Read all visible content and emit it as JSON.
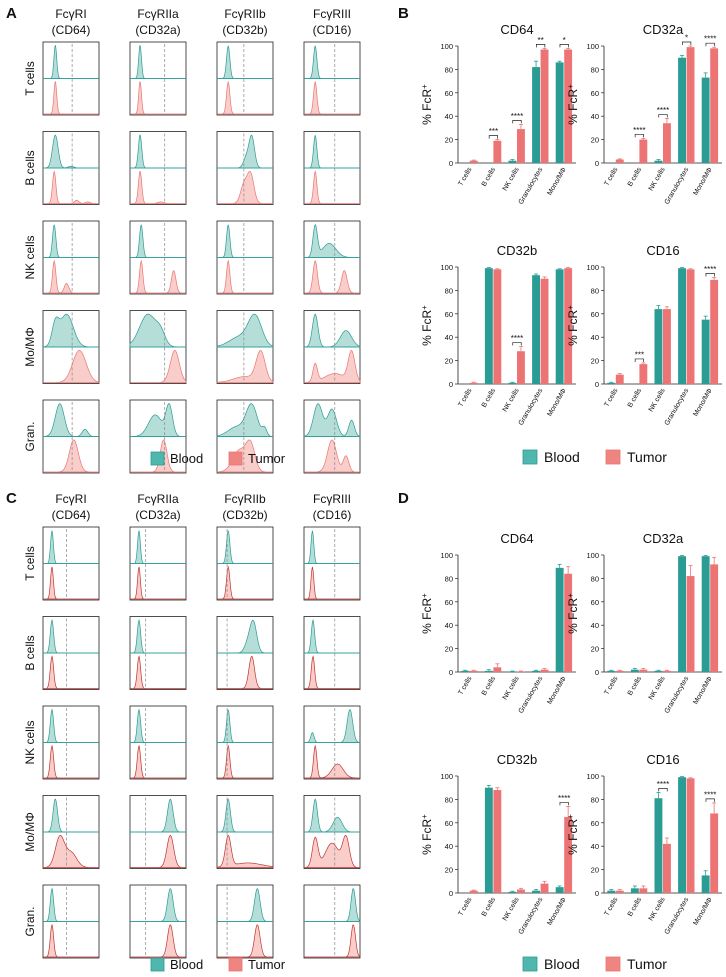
{
  "colors": {
    "blood": "#2a9c94",
    "blood_fill": "#a8d8d2",
    "tumor": "#ec7474",
    "tumor_fill": "#f8c5c1",
    "tumor_line_cd": "#c0332f"
  },
  "panels": [
    "A",
    "B",
    "C",
    "D"
  ],
  "receptors": [
    {
      "line1": "FcγRI",
      "line2": "(CD64)"
    },
    {
      "line1": "FcγRIIa",
      "line2": "(CD32a)"
    },
    {
      "line1": "FcγRIIb",
      "line2": "(CD32b)"
    },
    {
      "line1": "FcγRIII",
      "line2": "(CD16)"
    }
  ],
  "cell_rows": [
    "T cells",
    "B cells",
    "NK cells",
    "Mo/MΦ",
    "Gran."
  ],
  "legend": {
    "blood": "Blood",
    "tumor": "Tumor"
  },
  "ylabel": "% FcR",
  "ylabel_sup": "+",
  "yticks": [
    "0",
    "20",
    "40",
    "60",
    "80",
    "100"
  ],
  "chart_data": [
    {
      "panel": "B",
      "type": "bar",
      "title": "CD64",
      "categories": [
        "T cells",
        "B cells",
        "NK cells",
        "Granulocytes",
        "Mono/MΦ"
      ],
      "series": [
        {
          "name": "Blood",
          "values": [
            0,
            0,
            2,
            82,
            86
          ],
          "err": [
            0,
            0,
            1,
            5,
            1
          ]
        },
        {
          "name": "Tumor",
          "values": [
            2,
            19,
            29,
            97,
            97
          ],
          "err": [
            0.5,
            1,
            4,
            1,
            1
          ]
        }
      ],
      "ylim": [
        0,
        100
      ],
      "sig": [
        {
          "i": 1,
          "label": "***"
        },
        {
          "i": 2,
          "label": "****"
        },
        {
          "i": 3,
          "label": "**"
        },
        {
          "i": 4,
          "label": "*"
        }
      ]
    },
    {
      "panel": "B",
      "type": "bar",
      "title": "CD32a",
      "categories": [
        "T cells",
        "B cells",
        "NK cells",
        "Granulocytes",
        "Mono/MΦ"
      ],
      "series": [
        {
          "name": "Blood",
          "values": [
            0,
            0,
            2,
            90,
            73
          ],
          "err": [
            0,
            0,
            1,
            2,
            4
          ]
        },
        {
          "name": "Tumor",
          "values": [
            3,
            20,
            34,
            99,
            98
          ],
          "err": [
            0.5,
            1,
            4,
            1,
            1
          ]
        }
      ],
      "ylim": [
        0,
        100
      ],
      "sig": [
        {
          "i": 1,
          "label": "****"
        },
        {
          "i": 2,
          "label": "****"
        },
        {
          "i": 3,
          "label": "*"
        },
        {
          "i": 4,
          "label": "****"
        }
      ]
    },
    {
      "panel": "B",
      "type": "bar",
      "title": "CD32b",
      "categories": [
        "T cells",
        "B cells",
        "NK cells",
        "Granulocytes",
        "Mono/MΦ"
      ],
      "series": [
        {
          "name": "Blood",
          "values": [
            0,
            99,
            1,
            93,
            98
          ],
          "err": [
            0,
            0.5,
            0.5,
            1,
            0.5
          ]
        },
        {
          "name": "Tumor",
          "values": [
            1,
            98,
            28,
            90,
            99
          ],
          "err": [
            0.5,
            0.5,
            4,
            1.5,
            0.5
          ]
        }
      ],
      "ylim": [
        0,
        100
      ],
      "sig": [
        {
          "i": 2,
          "label": "****"
        }
      ]
    },
    {
      "panel": "B",
      "type": "bar",
      "title": "CD16",
      "categories": [
        "T cells",
        "B cells",
        "NK cells",
        "Granulocytes",
        "Mono/MΦ"
      ],
      "series": [
        {
          "name": "Blood",
          "values": [
            1,
            0,
            64,
            99,
            55
          ],
          "err": [
            0.5,
            0,
            3,
            0.5,
            3
          ]
        },
        {
          "name": "Tumor",
          "values": [
            8,
            17,
            64,
            98,
            89
          ],
          "err": [
            1,
            1,
            2,
            0.5,
            2
          ]
        }
      ],
      "ylim": [
        0,
        100
      ],
      "sig": [
        {
          "i": 1,
          "label": "***"
        },
        {
          "i": 4,
          "label": "****"
        }
      ]
    },
    {
      "panel": "D",
      "type": "bar",
      "title": "CD64",
      "categories": [
        "T cells",
        "B cells",
        "NK cells",
        "Granulocytes",
        "Mono/MΦ"
      ],
      "series": [
        {
          "name": "Blood",
          "values": [
            1,
            1,
            0.5,
            1,
            89
          ],
          "err": [
            0.5,
            1,
            0.3,
            0.5,
            3
          ]
        },
        {
          "name": "Tumor",
          "values": [
            1,
            4,
            0.5,
            2,
            84
          ],
          "err": [
            0.5,
            3,
            0.3,
            1,
            6
          ]
        }
      ],
      "ylim": [
        0,
        100
      ],
      "sig": []
    },
    {
      "panel": "D",
      "type": "bar",
      "title": "CD32a",
      "categories": [
        "T cells",
        "B cells",
        "NK cells",
        "Granulocytes",
        "Mono/MΦ"
      ],
      "series": [
        {
          "name": "Blood",
          "values": [
            1,
            2,
            1,
            99,
            99
          ],
          "err": [
            0.5,
            1,
            0.5,
            0.5,
            0.5
          ]
        },
        {
          "name": "Tumor",
          "values": [
            1,
            2,
            1,
            82,
            92
          ],
          "err": [
            0.5,
            1,
            0.5,
            9,
            6
          ]
        }
      ],
      "ylim": [
        0,
        100
      ],
      "sig": []
    },
    {
      "panel": "D",
      "type": "bar",
      "title": "CD32b",
      "categories": [
        "T cells",
        "B cells",
        "NK cells",
        "Granulocytes",
        "Mono/MΦ"
      ],
      "series": [
        {
          "name": "Blood",
          "values": [
            0,
            90,
            1,
            2,
            5
          ],
          "err": [
            0,
            2,
            0.5,
            1,
            1
          ]
        },
        {
          "name": "Tumor",
          "values": [
            2,
            88,
            3,
            8,
            65
          ],
          "err": [
            0.5,
            2,
            1,
            2,
            9
          ]
        }
      ],
      "ylim": [
        0,
        100
      ],
      "sig": [
        {
          "i": 4,
          "label": "****"
        }
      ]
    },
    {
      "panel": "D",
      "type": "bar",
      "title": "CD16",
      "categories": [
        "T cells",
        "B cells",
        "NK cells",
        "Granulocytes",
        "Mono/MΦ"
      ],
      "series": [
        {
          "name": "Blood",
          "values": [
            2,
            4,
            81,
            99,
            15
          ],
          "err": [
            1,
            2,
            5,
            0.5,
            4
          ]
        },
        {
          "name": "Tumor",
          "values": [
            2,
            4,
            42,
            98,
            68
          ],
          "err": [
            1,
            2,
            5,
            0.5,
            9
          ]
        }
      ],
      "ylim": [
        0,
        100
      ],
      "sig": [
        {
          "i": 2,
          "label": "****"
        },
        {
          "i": 4,
          "label": "****"
        }
      ]
    }
  ]
}
